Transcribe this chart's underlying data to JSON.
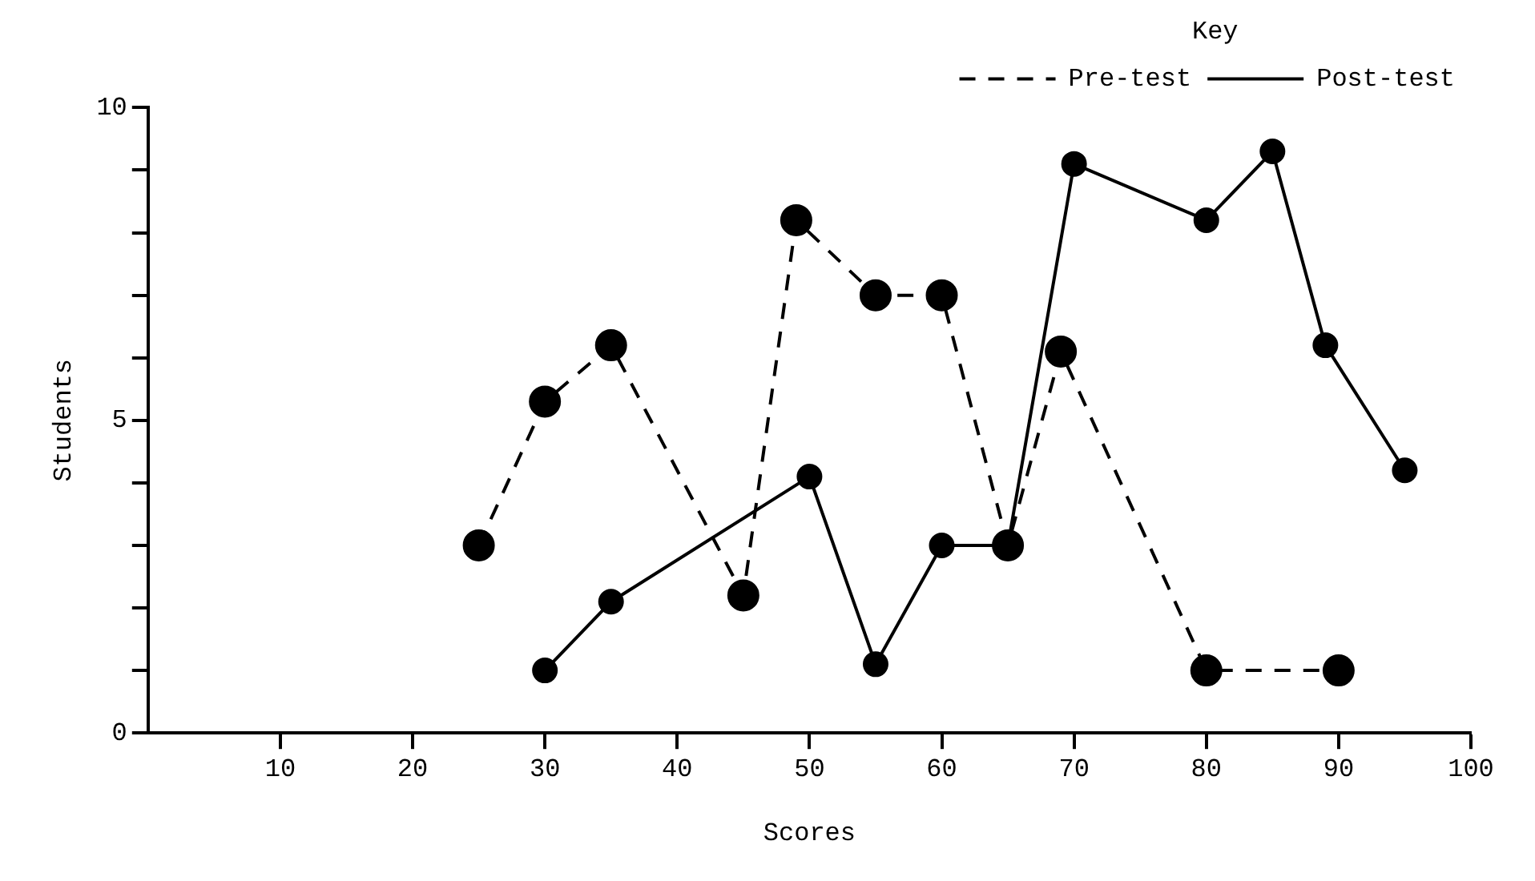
{
  "chart_data": {
    "type": "line",
    "xlabel": "Scores",
    "ylabel": "Students",
    "legend_title": "Key",
    "legend": "top right",
    "grid": false,
    "marker": "circle",
    "xlim": [
      0,
      100
    ],
    "xticks": [
      10,
      20,
      30,
      40,
      50,
      60,
      70,
      80,
      90,
      100
    ],
    "ylim": [
      0,
      10
    ],
    "yticks": [
      0,
      {
        "value": 1,
        "label": null
      },
      {
        "value": 2,
        "label": null
      },
      {
        "value": 3,
        "label": null
      },
      {
        "value": 4,
        "label": null
      },
      5,
      {
        "value": 6,
        "label": null
      },
      {
        "value": 7,
        "label": null
      },
      {
        "value": 8,
        "label": null
      },
      {
        "value": 9,
        "label": null
      },
      10
    ],
    "series": [
      {
        "name": "Pre-test",
        "color": "#000000",
        "line_style": "dashed",
        "x": [
          25,
          30,
          35,
          45,
          49,
          55,
          60,
          65,
          69,
          80,
          90
        ],
        "values": [
          3,
          5.3,
          6.2,
          2.2,
          8.2,
          7,
          7,
          3,
          6.1,
          1,
          1
        ]
      },
      {
        "name": "Post-test",
        "color": "#000000",
        "line_style": "solid",
        "x": [
          30,
          35,
          50,
          55,
          60,
          65,
          70,
          80,
          85,
          89,
          95
        ],
        "values": [
          1,
          2.1,
          4.1,
          1.1,
          3,
          3,
          9.1,
          8.2,
          9.3,
          6.2,
          4.2
        ]
      }
    ]
  }
}
